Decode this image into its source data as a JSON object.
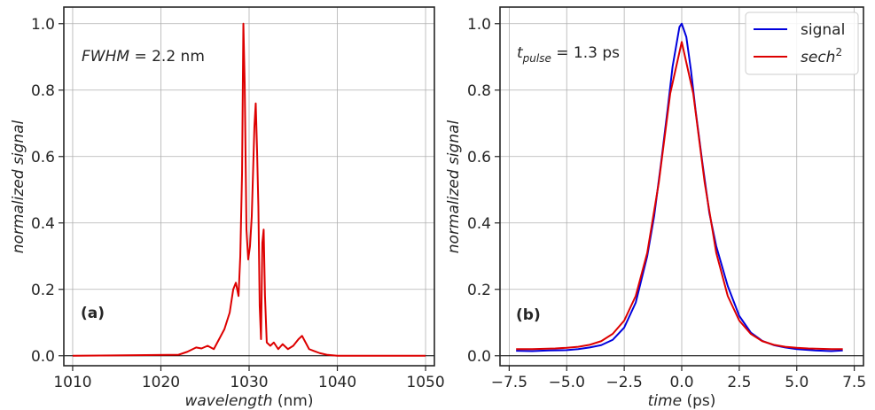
{
  "chart_data": [
    {
      "panel": "(a)",
      "type": "line",
      "xlabel_italic": "wavelength",
      "xlabel_unit": " (nm)",
      "ylabel": "normalized signal",
      "xlim": [
        1009,
        1051
      ],
      "ylim": [
        -0.03,
        1.05
      ],
      "xticks": [
        1010,
        1020,
        1030,
        1040,
        1050
      ],
      "yticks": [
        0.0,
        0.2,
        0.4,
        0.6,
        0.8,
        1.0
      ],
      "annotation": {
        "italic": "FWHM",
        "rest": " = 2.2 nm"
      },
      "grid": true,
      "series": [
        {
          "color": "#dd0000",
          "x": [
            1010,
            1022,
            1023,
            1024,
            1024.6,
            1025.3,
            1026,
            1026.6,
            1027.2,
            1027.8,
            1028.2,
            1028.5,
            1028.8,
            1029.0,
            1029.2,
            1029.35,
            1029.5,
            1029.7,
            1029.9,
            1030.1,
            1030.3,
            1030.6,
            1030.75,
            1030.9,
            1031.05,
            1031.2,
            1031.35,
            1031.5,
            1031.65,
            1031.8,
            1032.0,
            1032.4,
            1032.8,
            1033.3,
            1033.8,
            1034.4,
            1035.0,
            1035.6,
            1036.0,
            1036.4,
            1036.8,
            1037.3,
            1038.0,
            1038.8,
            1040,
            1050
          ],
          "y": [
            0.0,
            0.003,
            0.012,
            0.025,
            0.022,
            0.03,
            0.02,
            0.05,
            0.08,
            0.13,
            0.2,
            0.22,
            0.18,
            0.3,
            0.55,
            1.0,
            0.82,
            0.38,
            0.29,
            0.33,
            0.42,
            0.69,
            0.76,
            0.62,
            0.45,
            0.15,
            0.05,
            0.34,
            0.38,
            0.18,
            0.04,
            0.03,
            0.04,
            0.02,
            0.035,
            0.02,
            0.03,
            0.05,
            0.06,
            0.04,
            0.02,
            0.015,
            0.008,
            0.003,
            0.0,
            0.0
          ]
        }
      ]
    },
    {
      "panel": "(b)",
      "type": "line",
      "xlabel_italic": "time",
      "xlabel_unit": " (ps)",
      "ylabel": "normalized signal",
      "xlim": [
        -7.9,
        7.9
      ],
      "ylim": [
        -0.03,
        1.05
      ],
      "xticks": [
        -7.5,
        -5.0,
        -2.5,
        0.0,
        2.5,
        5.0,
        7.5
      ],
      "xtick_labels": [
        "−7.5",
        "−5.0",
        "−2.5",
        "0.0",
        "2.5",
        "5.0",
        "7.5"
      ],
      "yticks": [
        0.0,
        0.2,
        0.4,
        0.6,
        0.8,
        1.0
      ],
      "annotation": {
        "base": "t",
        "sub": "pulse",
        "rest": " = 1.3 ps"
      },
      "grid": true,
      "series": [
        {
          "name": "signal",
          "color": "#0000dd",
          "x": [
            -7.2,
            -6.5,
            -5.8,
            -5.0,
            -4.5,
            -4.0,
            -3.5,
            -3.0,
            -2.5,
            -2.0,
            -1.5,
            -1.2,
            -0.9,
            -0.6,
            -0.4,
            -0.2,
            -0.1,
            0.0,
            0.1,
            0.2,
            0.4,
            0.6,
            0.9,
            1.2,
            1.5,
            2.0,
            2.5,
            3.0,
            3.5,
            4.0,
            4.5,
            5.0,
            5.8,
            6.5,
            7.0
          ],
          "y": [
            0.015,
            0.014,
            0.016,
            0.017,
            0.02,
            0.025,
            0.032,
            0.048,
            0.085,
            0.16,
            0.3,
            0.42,
            0.58,
            0.75,
            0.87,
            0.95,
            0.99,
            1.0,
            0.98,
            0.96,
            0.86,
            0.74,
            0.58,
            0.43,
            0.33,
            0.21,
            0.12,
            0.07,
            0.045,
            0.032,
            0.025,
            0.02,
            0.016,
            0.014,
            0.016
          ]
        },
        {
          "name": "sech²",
          "color": "#dd0000",
          "x": [
            -7.2,
            -6.5,
            -6.0,
            -5.5,
            -5.0,
            -4.5,
            -4.0,
            -3.5,
            -3.0,
            -2.5,
            -2.0,
            -1.5,
            -1.0,
            -0.5,
            0.0,
            0.5,
            1.0,
            1.5,
            2.0,
            2.5,
            3.0,
            3.5,
            4.0,
            4.5,
            5.0,
            5.5,
            6.0,
            6.5,
            7.0
          ],
          "y": [
            0.02,
            0.02,
            0.021,
            0.022,
            0.024,
            0.027,
            0.033,
            0.044,
            0.066,
            0.106,
            0.18,
            0.31,
            0.52,
            0.79,
            0.945,
            0.79,
            0.52,
            0.31,
            0.18,
            0.106,
            0.066,
            0.044,
            0.033,
            0.027,
            0.024,
            0.022,
            0.021,
            0.02,
            0.02
          ]
        }
      ],
      "legend": {
        "position": "top-right",
        "entries": [
          {
            "label": "signal",
            "color": "#0000dd"
          },
          {
            "label_base": "sech",
            "label_sup": "2",
            "color": "#dd0000"
          }
        ]
      }
    }
  ]
}
